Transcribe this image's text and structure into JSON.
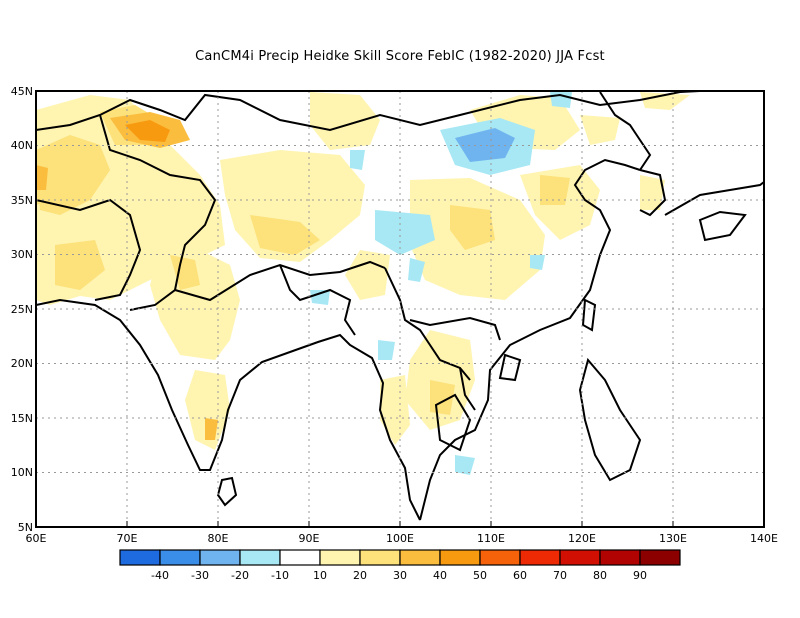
{
  "title": "CanCM4i Precip Heidke Skill Score FebIC (1982-2020) JJA Fcst",
  "map": {
    "lon_range": [
      60,
      140
    ],
    "lat_range": [
      5,
      45
    ],
    "lon_ticks": [
      "60E",
      "70E",
      "80E",
      "90E",
      "100E",
      "110E",
      "120E",
      "130E",
      "140E"
    ],
    "lat_ticks": [
      "5N",
      "10N",
      "15N",
      "20N",
      "25N",
      "30N",
      "35N",
      "40N",
      "45N"
    ],
    "gridlines": "dotted"
  },
  "colorbar": {
    "colors": [
      "#1e6be0",
      "#3a8ee8",
      "#6fb4ef",
      "#a8e8f4",
      "#ffffff",
      "#fff4b0",
      "#fde17a",
      "#fbbd3e",
      "#f89a10",
      "#f5620a",
      "#ee2a04",
      "#d20f03",
      "#b00302",
      "#8c0000"
    ],
    "labels": [
      "-40",
      "-30",
      "-20",
      "-10",
      "10",
      "20",
      "30",
      "40",
      "50",
      "60",
      "70",
      "80",
      "90"
    ]
  }
}
